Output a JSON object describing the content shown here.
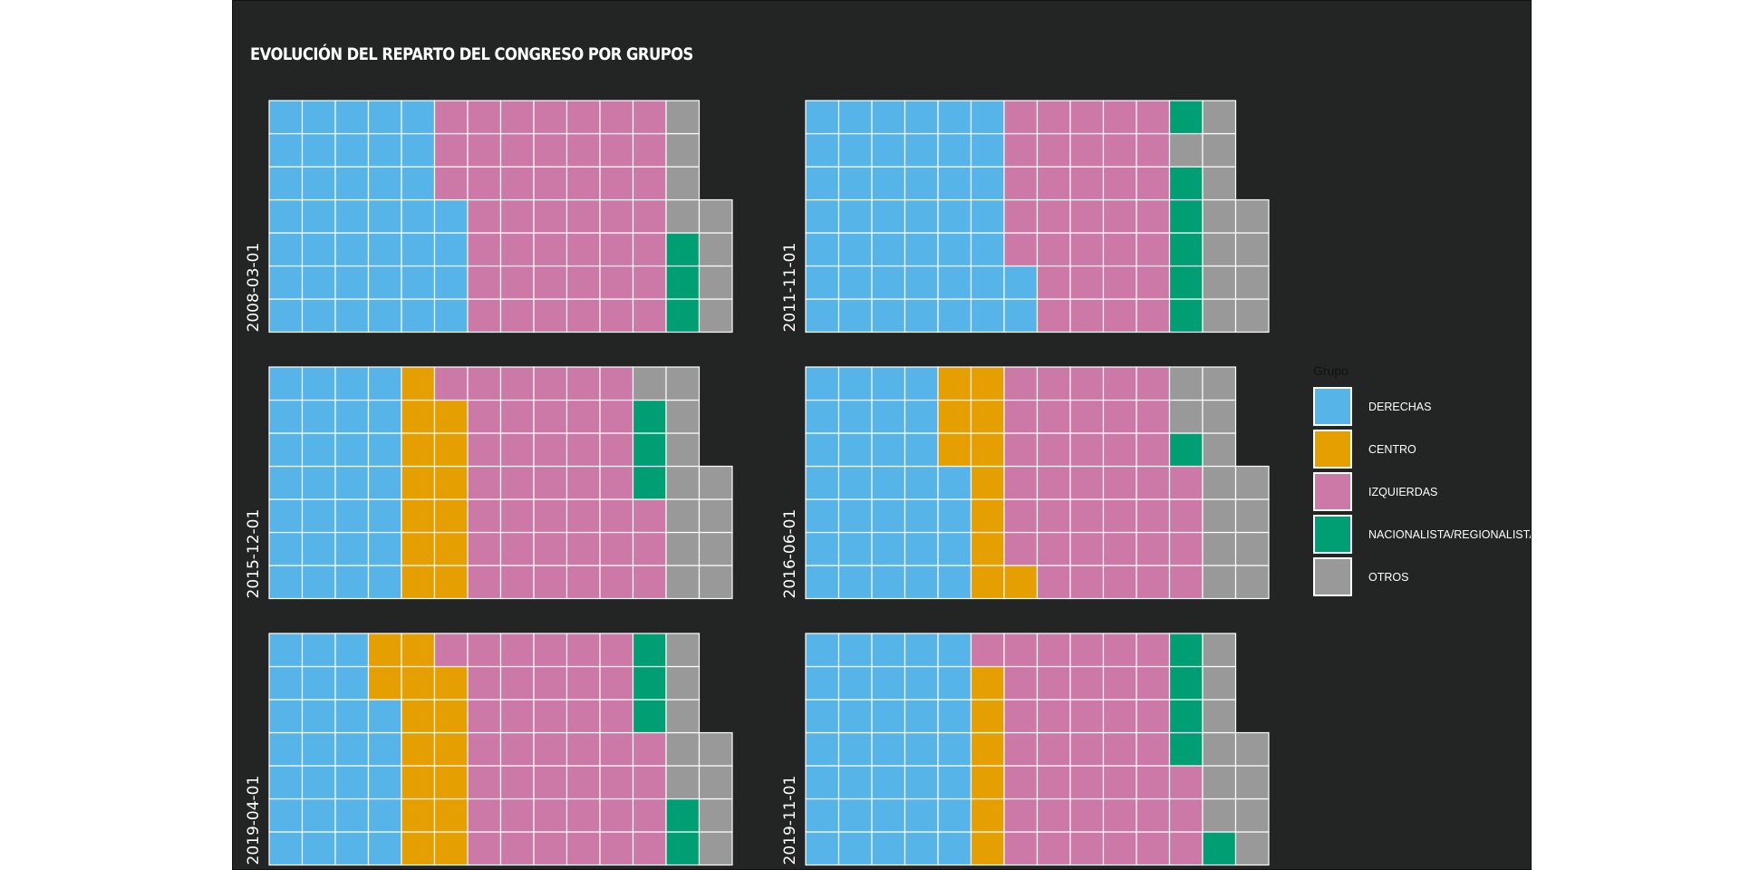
{
  "colors": {
    "DERECHAS": "#56B4E9",
    "CENTRO": "#E69F00",
    "IZQUIERDAS": "#CC79A7",
    "NACIONALISTA/REGIONALISTA": "#009E73",
    "OTROS": "#999999",
    "background": "#222524",
    "tile_border": "#ffffff"
  },
  "chart_data": {
    "type": "waffle",
    "title": "Evolución del reparto del Congreso por grupos",
    "rows_per_facet": 7,
    "legend_title": "Grupo",
    "categories": [
      "DERECHAS",
      "CENTRO",
      "IZQUIERDAS",
      "NACIONALISTA/REGIONALISTA",
      "OTROS"
    ],
    "facets": [
      {
        "label": "2008-03-01",
        "columns": [
          [
            "DERECHAS",
            "DERECHAS",
            "DERECHAS",
            "DERECHAS",
            "DERECHAS",
            "DERECHAS",
            "DERECHAS"
          ],
          [
            "DERECHAS",
            "DERECHAS",
            "DERECHAS",
            "DERECHAS",
            "DERECHAS",
            "DERECHAS",
            "DERECHAS"
          ],
          [
            "DERECHAS",
            "DERECHAS",
            "DERECHAS",
            "DERECHAS",
            "DERECHAS",
            "DERECHAS",
            "DERECHAS"
          ],
          [
            "DERECHAS",
            "DERECHAS",
            "DERECHAS",
            "DERECHAS",
            "DERECHAS",
            "DERECHAS",
            "DERECHAS"
          ],
          [
            "DERECHAS",
            "DERECHAS",
            "DERECHAS",
            "DERECHAS",
            "DERECHAS",
            "DERECHAS",
            "DERECHAS"
          ],
          [
            "DERECHAS",
            "DERECHAS",
            "DERECHAS",
            "DERECHAS",
            "IZQUIERDAS",
            "IZQUIERDAS",
            "IZQUIERDAS"
          ],
          [
            "IZQUIERDAS",
            "IZQUIERDAS",
            "IZQUIERDAS",
            "IZQUIERDAS",
            "IZQUIERDAS",
            "IZQUIERDAS",
            "IZQUIERDAS"
          ],
          [
            "IZQUIERDAS",
            "IZQUIERDAS",
            "IZQUIERDAS",
            "IZQUIERDAS",
            "IZQUIERDAS",
            "IZQUIERDAS",
            "IZQUIERDAS"
          ],
          [
            "IZQUIERDAS",
            "IZQUIERDAS",
            "IZQUIERDAS",
            "IZQUIERDAS",
            "IZQUIERDAS",
            "IZQUIERDAS",
            "IZQUIERDAS"
          ],
          [
            "IZQUIERDAS",
            "IZQUIERDAS",
            "IZQUIERDAS",
            "IZQUIERDAS",
            "IZQUIERDAS",
            "IZQUIERDAS",
            "IZQUIERDAS"
          ],
          [
            "IZQUIERDAS",
            "IZQUIERDAS",
            "IZQUIERDAS",
            "IZQUIERDAS",
            "IZQUIERDAS",
            "IZQUIERDAS",
            "IZQUIERDAS"
          ],
          [
            "IZQUIERDAS",
            "IZQUIERDAS",
            "IZQUIERDAS",
            "IZQUIERDAS",
            "IZQUIERDAS",
            "IZQUIERDAS",
            "IZQUIERDAS"
          ],
          [
            "NACIONALISTA/REGIONALISTA",
            "NACIONALISTA/REGIONALISTA",
            "NACIONALISTA/REGIONALISTA",
            "OTROS",
            "OTROS",
            "OTROS",
            "OTROS"
          ],
          [
            "OTROS",
            "OTROS",
            "OTROS",
            "OTROS"
          ]
        ]
      },
      {
        "label": "2011-11-01",
        "columns": [
          [
            "DERECHAS",
            "DERECHAS",
            "DERECHAS",
            "DERECHAS",
            "DERECHAS",
            "DERECHAS",
            "DERECHAS"
          ],
          [
            "DERECHAS",
            "DERECHAS",
            "DERECHAS",
            "DERECHAS",
            "DERECHAS",
            "DERECHAS",
            "DERECHAS"
          ],
          [
            "DERECHAS",
            "DERECHAS",
            "DERECHAS",
            "DERECHAS",
            "DERECHAS",
            "DERECHAS",
            "DERECHAS"
          ],
          [
            "DERECHAS",
            "DERECHAS",
            "DERECHAS",
            "DERECHAS",
            "DERECHAS",
            "DERECHAS",
            "DERECHAS"
          ],
          [
            "DERECHAS",
            "DERECHAS",
            "DERECHAS",
            "DERECHAS",
            "DERECHAS",
            "DERECHAS",
            "DERECHAS"
          ],
          [
            "DERECHAS",
            "DERECHAS",
            "DERECHAS",
            "DERECHAS",
            "DERECHAS",
            "DERECHAS",
            "DERECHAS"
          ],
          [
            "DERECHAS",
            "DERECHAS",
            "IZQUIERDAS",
            "IZQUIERDAS",
            "IZQUIERDAS",
            "IZQUIERDAS",
            "IZQUIERDAS"
          ],
          [
            "IZQUIERDAS",
            "IZQUIERDAS",
            "IZQUIERDAS",
            "IZQUIERDAS",
            "IZQUIERDAS",
            "IZQUIERDAS",
            "IZQUIERDAS"
          ],
          [
            "IZQUIERDAS",
            "IZQUIERDAS",
            "IZQUIERDAS",
            "IZQUIERDAS",
            "IZQUIERDAS",
            "IZQUIERDAS",
            "IZQUIERDAS"
          ],
          [
            "IZQUIERDAS",
            "IZQUIERDAS",
            "IZQUIERDAS",
            "IZQUIERDAS",
            "IZQUIERDAS",
            "IZQUIERDAS",
            "IZQUIERDAS"
          ],
          [
            "IZQUIERDAS",
            "IZQUIERDAS",
            "IZQUIERDAS",
            "IZQUIERDAS",
            "IZQUIERDAS",
            "IZQUIERDAS",
            "IZQUIERDAS"
          ],
          [
            "NACIONALISTA/REGIONALISTA",
            "NACIONALISTA/REGIONALISTA",
            "NACIONALISTA/REGIONALISTA",
            "NACIONALISTA/REGIONALISTA",
            "NACIONALISTA/REGIONALISTA",
            "OTROS",
            "NACIONALISTA/REGIONALISTA"
          ],
          [
            "OTROS",
            "OTROS",
            "OTROS",
            "OTROS",
            "OTROS",
            "OTROS",
            "OTROS"
          ],
          [
            "OTROS",
            "OTROS",
            "OTROS",
            "OTROS"
          ]
        ]
      },
      {
        "label": "2015-12-01",
        "columns": [
          [
            "DERECHAS",
            "DERECHAS",
            "DERECHAS",
            "DERECHAS",
            "DERECHAS",
            "DERECHAS",
            "DERECHAS"
          ],
          [
            "DERECHAS",
            "DERECHAS",
            "DERECHAS",
            "DERECHAS",
            "DERECHAS",
            "DERECHAS",
            "DERECHAS"
          ],
          [
            "DERECHAS",
            "DERECHAS",
            "DERECHAS",
            "DERECHAS",
            "DERECHAS",
            "DERECHAS",
            "DERECHAS"
          ],
          [
            "DERECHAS",
            "DERECHAS",
            "DERECHAS",
            "DERECHAS",
            "DERECHAS",
            "DERECHAS",
            "DERECHAS"
          ],
          [
            "CENTRO",
            "CENTRO",
            "CENTRO",
            "CENTRO",
            "CENTRO",
            "CENTRO",
            "CENTRO"
          ],
          [
            "CENTRO",
            "CENTRO",
            "CENTRO",
            "CENTRO",
            "CENTRO",
            "CENTRO",
            "IZQUIERDAS"
          ],
          [
            "IZQUIERDAS",
            "IZQUIERDAS",
            "IZQUIERDAS",
            "IZQUIERDAS",
            "IZQUIERDAS",
            "IZQUIERDAS",
            "IZQUIERDAS"
          ],
          [
            "IZQUIERDAS",
            "IZQUIERDAS",
            "IZQUIERDAS",
            "IZQUIERDAS",
            "IZQUIERDAS",
            "IZQUIERDAS",
            "IZQUIERDAS"
          ],
          [
            "IZQUIERDAS",
            "IZQUIERDAS",
            "IZQUIERDAS",
            "IZQUIERDAS",
            "IZQUIERDAS",
            "IZQUIERDAS",
            "IZQUIERDAS"
          ],
          [
            "IZQUIERDAS",
            "IZQUIERDAS",
            "IZQUIERDAS",
            "IZQUIERDAS",
            "IZQUIERDAS",
            "IZQUIERDAS",
            "IZQUIERDAS"
          ],
          [
            "IZQUIERDAS",
            "IZQUIERDAS",
            "IZQUIERDAS",
            "IZQUIERDAS",
            "IZQUIERDAS",
            "IZQUIERDAS",
            "IZQUIERDAS"
          ],
          [
            "IZQUIERDAS",
            "IZQUIERDAS",
            "IZQUIERDAS",
            "NACIONALISTA/REGIONALISTA",
            "NACIONALISTA/REGIONALISTA",
            "NACIONALISTA/REGIONALISTA",
            "OTROS"
          ],
          [
            "OTROS",
            "OTROS",
            "OTROS",
            "OTROS",
            "OTROS",
            "OTROS",
            "OTROS"
          ],
          [
            "OTROS",
            "OTROS",
            "OTROS",
            "OTROS"
          ]
        ]
      },
      {
        "label": "2016-06-01",
        "columns": [
          [
            "DERECHAS",
            "DERECHAS",
            "DERECHAS",
            "DERECHAS",
            "DERECHAS",
            "DERECHAS",
            "DERECHAS"
          ],
          [
            "DERECHAS",
            "DERECHAS",
            "DERECHAS",
            "DERECHAS",
            "DERECHAS",
            "DERECHAS",
            "DERECHAS"
          ],
          [
            "DERECHAS",
            "DERECHAS",
            "DERECHAS",
            "DERECHAS",
            "DERECHAS",
            "DERECHAS",
            "DERECHAS"
          ],
          [
            "DERECHAS",
            "DERECHAS",
            "DERECHAS",
            "DERECHAS",
            "DERECHAS",
            "DERECHAS",
            "DERECHAS"
          ],
          [
            "DERECHAS",
            "DERECHAS",
            "DERECHAS",
            "DERECHAS",
            "CENTRO",
            "CENTRO",
            "CENTRO"
          ],
          [
            "CENTRO",
            "CENTRO",
            "CENTRO",
            "CENTRO",
            "CENTRO",
            "CENTRO",
            "CENTRO"
          ],
          [
            "CENTRO",
            "IZQUIERDAS",
            "IZQUIERDAS",
            "IZQUIERDAS",
            "IZQUIERDAS",
            "IZQUIERDAS",
            "IZQUIERDAS"
          ],
          [
            "IZQUIERDAS",
            "IZQUIERDAS",
            "IZQUIERDAS",
            "IZQUIERDAS",
            "IZQUIERDAS",
            "IZQUIERDAS",
            "IZQUIERDAS"
          ],
          [
            "IZQUIERDAS",
            "IZQUIERDAS",
            "IZQUIERDAS",
            "IZQUIERDAS",
            "IZQUIERDAS",
            "IZQUIERDAS",
            "IZQUIERDAS"
          ],
          [
            "IZQUIERDAS",
            "IZQUIERDAS",
            "IZQUIERDAS",
            "IZQUIERDAS",
            "IZQUIERDAS",
            "IZQUIERDAS",
            "IZQUIERDAS"
          ],
          [
            "IZQUIERDAS",
            "IZQUIERDAS",
            "IZQUIERDAS",
            "IZQUIERDAS",
            "IZQUIERDAS",
            "IZQUIERDAS",
            "IZQUIERDAS"
          ],
          [
            "IZQUIERDAS",
            "IZQUIERDAS",
            "IZQUIERDAS",
            "IZQUIERDAS",
            "NACIONALISTA/REGIONALISTA",
            "OTROS",
            "OTROS"
          ],
          [
            "OTROS",
            "OTROS",
            "OTROS",
            "OTROS",
            "OTROS",
            "OTROS",
            "OTROS"
          ],
          [
            "OTROS",
            "OTROS",
            "OTROS",
            "OTROS"
          ]
        ]
      },
      {
        "label": "2019-04-01",
        "columns": [
          [
            "DERECHAS",
            "DERECHAS",
            "DERECHAS",
            "DERECHAS",
            "DERECHAS",
            "DERECHAS",
            "DERECHAS"
          ],
          [
            "DERECHAS",
            "DERECHAS",
            "DERECHAS",
            "DERECHAS",
            "DERECHAS",
            "DERECHAS",
            "DERECHAS"
          ],
          [
            "DERECHAS",
            "DERECHAS",
            "DERECHAS",
            "DERECHAS",
            "DERECHAS",
            "DERECHAS",
            "DERECHAS"
          ],
          [
            "DERECHAS",
            "DERECHAS",
            "DERECHAS",
            "DERECHAS",
            "DERECHAS",
            "CENTRO",
            "CENTRO"
          ],
          [
            "CENTRO",
            "CENTRO",
            "CENTRO",
            "CENTRO",
            "CENTRO",
            "CENTRO",
            "CENTRO"
          ],
          [
            "CENTRO",
            "CENTRO",
            "CENTRO",
            "CENTRO",
            "CENTRO",
            "CENTRO",
            "IZQUIERDAS"
          ],
          [
            "IZQUIERDAS",
            "IZQUIERDAS",
            "IZQUIERDAS",
            "IZQUIERDAS",
            "IZQUIERDAS",
            "IZQUIERDAS",
            "IZQUIERDAS"
          ],
          [
            "IZQUIERDAS",
            "IZQUIERDAS",
            "IZQUIERDAS",
            "IZQUIERDAS",
            "IZQUIERDAS",
            "IZQUIERDAS",
            "IZQUIERDAS"
          ],
          [
            "IZQUIERDAS",
            "IZQUIERDAS",
            "IZQUIERDAS",
            "IZQUIERDAS",
            "IZQUIERDAS",
            "IZQUIERDAS",
            "IZQUIERDAS"
          ],
          [
            "IZQUIERDAS",
            "IZQUIERDAS",
            "IZQUIERDAS",
            "IZQUIERDAS",
            "IZQUIERDAS",
            "IZQUIERDAS",
            "IZQUIERDAS"
          ],
          [
            "IZQUIERDAS",
            "IZQUIERDAS",
            "IZQUIERDAS",
            "IZQUIERDAS",
            "IZQUIERDAS",
            "IZQUIERDAS",
            "IZQUIERDAS"
          ],
          [
            "IZQUIERDAS",
            "IZQUIERDAS",
            "IZQUIERDAS",
            "IZQUIERDAS",
            "NACIONALISTA/REGIONALISTA",
            "NACIONALISTA/REGIONALISTA",
            "NACIONALISTA/REGIONALISTA"
          ],
          [
            "NACIONALISTA/REGIONALISTA",
            "NACIONALISTA/REGIONALISTA",
            "OTROS",
            "OTROS",
            "OTROS",
            "OTROS",
            "OTROS"
          ],
          [
            "OTROS",
            "OTROS",
            "OTROS",
            "OTROS"
          ]
        ]
      },
      {
        "label": "2019-11-01",
        "columns": [
          [
            "DERECHAS",
            "DERECHAS",
            "DERECHAS",
            "DERECHAS",
            "DERECHAS",
            "DERECHAS",
            "DERECHAS"
          ],
          [
            "DERECHAS",
            "DERECHAS",
            "DERECHAS",
            "DERECHAS",
            "DERECHAS",
            "DERECHAS",
            "DERECHAS"
          ],
          [
            "DERECHAS",
            "DERECHAS",
            "DERECHAS",
            "DERECHAS",
            "DERECHAS",
            "DERECHAS",
            "DERECHAS"
          ],
          [
            "DERECHAS",
            "DERECHAS",
            "DERECHAS",
            "DERECHAS",
            "DERECHAS",
            "DERECHAS",
            "DERECHAS"
          ],
          [
            "DERECHAS",
            "DERECHAS",
            "DERECHAS",
            "DERECHAS",
            "DERECHAS",
            "DERECHAS",
            "DERECHAS"
          ],
          [
            "CENTRO",
            "CENTRO",
            "CENTRO",
            "CENTRO",
            "CENTRO",
            "CENTRO",
            "IZQUIERDAS"
          ],
          [
            "IZQUIERDAS",
            "IZQUIERDAS",
            "IZQUIERDAS",
            "IZQUIERDAS",
            "IZQUIERDAS",
            "IZQUIERDAS",
            "IZQUIERDAS"
          ],
          [
            "IZQUIERDAS",
            "IZQUIERDAS",
            "IZQUIERDAS",
            "IZQUIERDAS",
            "IZQUIERDAS",
            "IZQUIERDAS",
            "IZQUIERDAS"
          ],
          [
            "IZQUIERDAS",
            "IZQUIERDAS",
            "IZQUIERDAS",
            "IZQUIERDAS",
            "IZQUIERDAS",
            "IZQUIERDAS",
            "IZQUIERDAS"
          ],
          [
            "IZQUIERDAS",
            "IZQUIERDAS",
            "IZQUIERDAS",
            "IZQUIERDAS",
            "IZQUIERDAS",
            "IZQUIERDAS",
            "IZQUIERDAS"
          ],
          [
            "IZQUIERDAS",
            "IZQUIERDAS",
            "IZQUIERDAS",
            "IZQUIERDAS",
            "IZQUIERDAS",
            "IZQUIERDAS",
            "IZQUIERDAS"
          ],
          [
            "IZQUIERDAS",
            "IZQUIERDAS",
            "IZQUIERDAS",
            "NACIONALISTA/REGIONALISTA",
            "NACIONALISTA/REGIONALISTA",
            "NACIONALISTA/REGIONALISTA",
            "NACIONALISTA/REGIONALISTA"
          ],
          [
            "NACIONALISTA/REGIONALISTA",
            "OTROS",
            "OTROS",
            "OTROS",
            "OTROS",
            "OTROS",
            "OTROS"
          ],
          [
            "OTROS",
            "OTROS",
            "OTROS",
            "OTROS"
          ]
        ]
      }
    ]
  }
}
